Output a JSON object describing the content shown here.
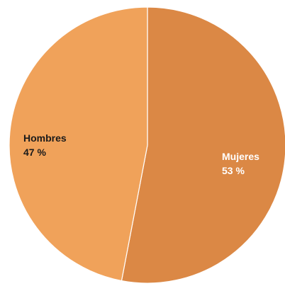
{
  "chart_data": {
    "type": "pie",
    "title": "",
    "slices": [
      {
        "label": "Mujeres",
        "value": 53,
        "pct_text": "53 %",
        "color": "#DB8845",
        "label_color": "#ffffff"
      },
      {
        "label": "Hombres",
        "value": 47,
        "pct_text": "47 %",
        "color": "#F0A25A",
        "label_color": "#1a1a1a"
      }
    ],
    "start_angle_deg": 0,
    "direction": "clockwise",
    "separator_color": "#ffffff",
    "legend": "none"
  }
}
